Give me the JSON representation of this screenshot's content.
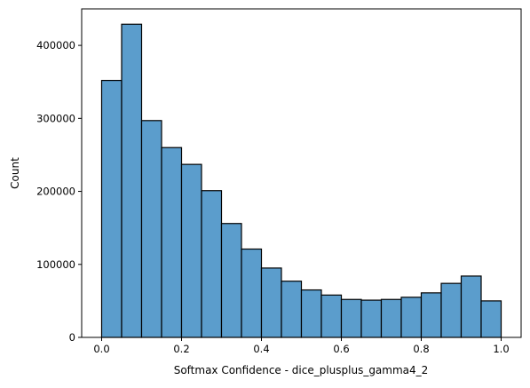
{
  "chart_data": {
    "type": "bar",
    "subtype": "histogram",
    "xlabel": "Softmax Confidence - dice_plusplus_gamma4_2",
    "ylabel": "Count",
    "xlim": [
      -0.05,
      1.05
    ],
    "ylim": [
      0,
      450000
    ],
    "x_ticks": [
      0.0,
      0.2,
      0.4,
      0.6,
      0.8,
      1.0
    ],
    "x_tick_labels": [
      "0.0",
      "0.2",
      "0.4",
      "0.6",
      "0.8",
      "1.0"
    ],
    "y_ticks": [
      0,
      100000,
      200000,
      300000,
      400000
    ],
    "y_tick_labels": [
      "0",
      "100000",
      "200000",
      "300000",
      "400000"
    ],
    "grid": false,
    "bin_edges": [
      0.0,
      0.05,
      0.1,
      0.15,
      0.2,
      0.25,
      0.3,
      0.35,
      0.4,
      0.45,
      0.5,
      0.55,
      0.6,
      0.65,
      0.7,
      0.75,
      0.8,
      0.85,
      0.9,
      0.95,
      1.0
    ],
    "values": [
      352000,
      429000,
      297000,
      260000,
      237000,
      201000,
      156000,
      121000,
      95000,
      77000,
      65000,
      58000,
      52000,
      51000,
      52000,
      55000,
      61000,
      74000,
      84000,
      50000
    ],
    "colors": {
      "bar_fill": "#5b9dcc",
      "bar_edge": "#000000",
      "axis": "#000000"
    }
  }
}
